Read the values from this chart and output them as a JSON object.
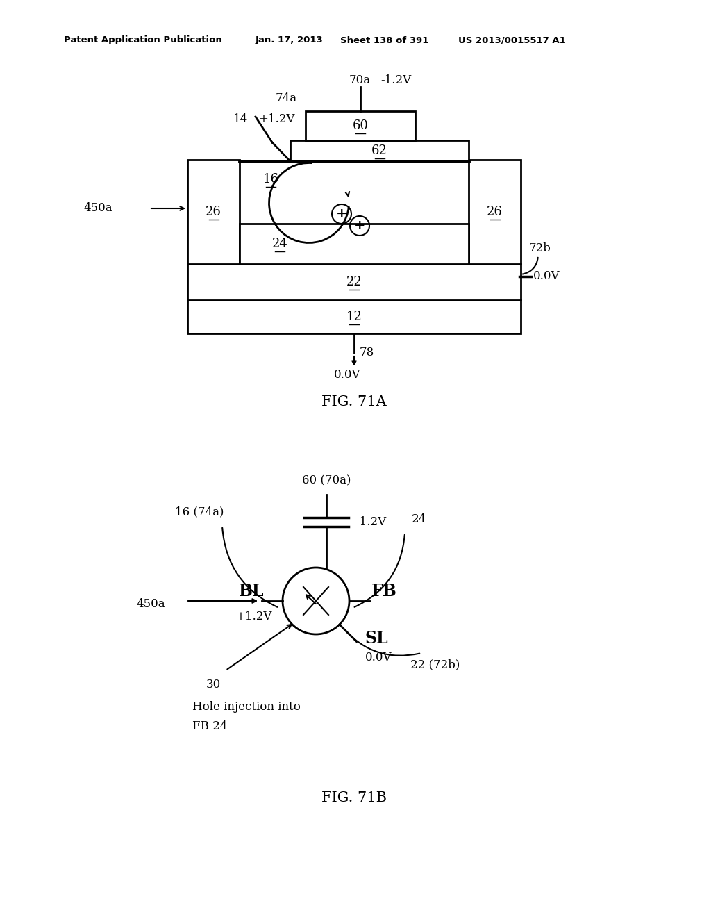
{
  "bg_color": "#ffffff",
  "header_left": "Patent Application Publication",
  "header_date": "Jan. 17, 2013",
  "header_sheet": "Sheet 138 of 391",
  "header_patent": "US 2013/0015517 A1",
  "fig1_label": "FIG. 71A",
  "fig2_label": "FIG. 71B"
}
